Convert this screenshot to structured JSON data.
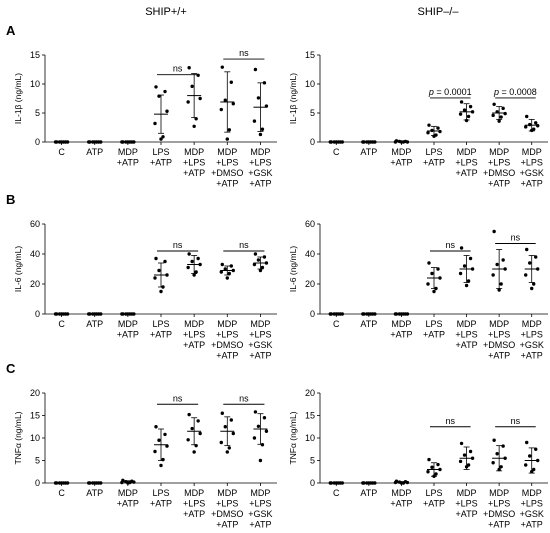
{
  "columns": [
    "SHIP+/+",
    "SHIP–/–"
  ],
  "chart_data": [
    {
      "type": "scatter",
      "panel": "A",
      "column": "SHIP+/+",
      "ylabel": "IL-1β (ng/mL)",
      "ylim": [
        0,
        15
      ],
      "yticks": [
        0,
        5,
        10,
        15
      ],
      "categories": [
        [
          "C"
        ],
        [
          "ATP"
        ],
        [
          "MDP",
          "+ATP"
        ],
        [
          "LPS",
          "+ATP"
        ],
        [
          "MDP",
          "+LPS",
          "+ATP"
        ],
        [
          "MDP",
          "+LPS",
          "+DMSO",
          "+ATP"
        ],
        [
          "MDP",
          "+LPS",
          "+GSK",
          "+ATP"
        ]
      ],
      "means": [
        0,
        0,
        0,
        4.8,
        8.0,
        6.9,
        6.0
      ],
      "sd": [
        0,
        0,
        0,
        3.3,
        3.8,
        5.2,
        4.2
      ],
      "points": [
        [
          0,
          0,
          0,
          0,
          0,
          0,
          0
        ],
        [
          0,
          0,
          0,
          0,
          0,
          0,
          0
        ],
        [
          0,
          0,
          0,
          0,
          0,
          0,
          0
        ],
        [
          9.5,
          8.7,
          7.9,
          5.3,
          3.2,
          0.9,
          0.5
        ],
        [
          12.8,
          11.5,
          9.6,
          7.5,
          6.9,
          4.0,
          2.7
        ],
        [
          12.9,
          10.3,
          7.2,
          6.6,
          5.6,
          2.1,
          0.5
        ],
        [
          12.5,
          10.2,
          7.6,
          6.2,
          3.6,
          2.2,
          1.3
        ]
      ],
      "annotations": [
        {
          "from": 3,
          "to": 4,
          "text": "ns",
          "y": 11.6
        },
        {
          "from": 5,
          "to": 6,
          "text": "ns",
          "y": 14.3
        }
      ]
    },
    {
      "type": "scatter",
      "panel": "A",
      "column": "SHIP–/–",
      "ylabel": "IL-1β (ng/mL)",
      "ylim": [
        0,
        15
      ],
      "yticks": [
        0,
        5,
        10,
        15
      ],
      "categories": [
        [
          "C"
        ],
        [
          "ATP"
        ],
        [
          "MDP",
          "+ATP"
        ],
        [
          "LPS",
          "+ATP"
        ],
        [
          "MDP",
          "+LPS",
          "+ATP"
        ],
        [
          "MDP",
          "+LPS",
          "+DMSO",
          "+ATP"
        ],
        [
          "MDP",
          "+LPS",
          "+GSK",
          "+ATP"
        ]
      ],
      "means": [
        0,
        0,
        0,
        1.9,
        5.2,
        5.0,
        2.9
      ],
      "sd": [
        0,
        0,
        0,
        0.8,
        1.4,
        1.1,
        1.0
      ],
      "points": [
        [
          0,
          0,
          0,
          0,
          0,
          0,
          0
        ],
        [
          0,
          0,
          0,
          0,
          0,
          0,
          0
        ],
        [
          0.2,
          0.1,
          0.1,
          0,
          0,
          0,
          0
        ],
        [
          2.9,
          2.4,
          2.0,
          1.8,
          1.6,
          1.2,
          1.0
        ],
        [
          6.9,
          6.1,
          5.5,
          5.2,
          4.8,
          4.4,
          3.7
        ],
        [
          6.5,
          5.8,
          5.2,
          4.9,
          4.6,
          4.3,
          3.6
        ],
        [
          4.4,
          3.3,
          3.0,
          2.8,
          2.6,
          2.2,
          2.0
        ]
      ],
      "annotations": [
        {
          "from": 3,
          "to": 4,
          "text": "p = 0.0001",
          "y": 7.6
        },
        {
          "from": 5,
          "to": 6,
          "text": "p = 0.0008",
          "y": 7.6
        }
      ]
    },
    {
      "type": "scatter",
      "panel": "B",
      "column": "SHIP+/+",
      "ylabel": "IL-6 (ng/mL)",
      "ylim": [
        0,
        60
      ],
      "yticks": [
        0,
        20,
        40,
        60
      ],
      "categories": [
        [
          "C"
        ],
        [
          "ATP"
        ],
        [
          "MDP",
          "+ATP"
        ],
        [
          "LPS",
          "+ATP"
        ],
        [
          "MDP",
          "+LPS",
          "+ATP"
        ],
        [
          "MDP",
          "+LPS",
          "+DMSO",
          "+ATP"
        ],
        [
          "MDP",
          "+LPS",
          "+GSK",
          "+ATP"
        ]
      ],
      "means": [
        0,
        0,
        0,
        26,
        33,
        29,
        34
      ],
      "sd": [
        0,
        0,
        0,
        8,
        6,
        3,
        4
      ],
      "points": [
        [
          0,
          0,
          0,
          0,
          0,
          0,
          0
        ],
        [
          0,
          0,
          0,
          0,
          0,
          0,
          0
        ],
        [
          0,
          0,
          0,
          0,
          0,
          0,
          0
        ],
        [
          37,
          35,
          29,
          26,
          24,
          18,
          15
        ],
        [
          40,
          37,
          35,
          33,
          31,
          28,
          26
        ],
        [
          33,
          32,
          30,
          29,
          28,
          27,
          24
        ],
        [
          40,
          38,
          36,
          34,
          33,
          31,
          29
        ]
      ],
      "annotations": [
        {
          "from": 3,
          "to": 4,
          "text": "ns",
          "y": 42
        },
        {
          "from": 5,
          "to": 6,
          "text": "ns",
          "y": 42
        }
      ]
    },
    {
      "type": "scatter",
      "panel": "B",
      "column": "SHIP–/–",
      "ylabel": "IL-6 (ng/mL)",
      "ylim": [
        0,
        60
      ],
      "yticks": [
        0,
        20,
        40,
        60
      ],
      "categories": [
        [
          "C"
        ],
        [
          "ATP"
        ],
        [
          "MDP",
          "+ATP"
        ],
        [
          "LPS",
          "+ATP"
        ],
        [
          "MDP",
          "+LPS",
          "+ATP"
        ],
        [
          "MDP",
          "+LPS",
          "+DMSO",
          "+ATP"
        ],
        [
          "MDP",
          "+LPS",
          "+GSK",
          "+ATP"
        ]
      ],
      "means": [
        0,
        0,
        0,
        24,
        30,
        30,
        30
      ],
      "sd": [
        0,
        0,
        0,
        7,
        9,
        13,
        9
      ],
      "points": [
        [
          0,
          0,
          0,
          0,
          0,
          0,
          0
        ],
        [
          0,
          0,
          0,
          0,
          0,
          0,
          0
        ],
        [
          0,
          0,
          0,
          0,
          0,
          0,
          0
        ],
        [
          34,
          30,
          27,
          24,
          20,
          17,
          15
        ],
        [
          44,
          37,
          32,
          30,
          27,
          22,
          19
        ],
        [
          55,
          36,
          33,
          30,
          26,
          20,
          16
        ],
        [
          43,
          38,
          34,
          30,
          26,
          20,
          17
        ]
      ],
      "annotations": [
        {
          "from": 3,
          "to": 4,
          "text": "ns",
          "y": 42
        },
        {
          "from": 5,
          "to": 6,
          "text": "ns",
          "y": 47
        }
      ]
    },
    {
      "type": "scatter",
      "panel": "C",
      "column": "SHIP+/+",
      "ylabel": "TNFα (ng/mL)",
      "ylim": [
        0,
        20
      ],
      "yticks": [
        0,
        5,
        10,
        15,
        20
      ],
      "categories": [
        [
          "C"
        ],
        [
          "ATP"
        ],
        [
          "MDP",
          "+ATP"
        ],
        [
          "LPS",
          "+ATP"
        ],
        [
          "MDP",
          "+LPS",
          "+ATP"
        ],
        [
          "MDP",
          "+LPS",
          "+DMSO",
          "+ATP"
        ],
        [
          "MDP",
          "+LPS",
          "+GSK",
          "+ATP"
        ]
      ],
      "means": [
        0,
        0,
        0.3,
        8.5,
        11.5,
        11.5,
        12.0
      ],
      "sd": [
        0,
        0,
        0.2,
        3.5,
        3.0,
        3.2,
        3.4
      ],
      "points": [
        [
          0,
          0,
          0,
          0,
          0,
          0,
          0
        ],
        [
          0,
          0,
          0,
          0,
          0,
          0,
          0
        ],
        [
          0.6,
          0.4,
          0.3,
          0.2,
          0.1,
          0.1,
          0
        ],
        [
          12.5,
          10.8,
          9.5,
          8.2,
          7.0,
          5.2,
          3.9
        ],
        [
          15.2,
          13.8,
          12.1,
          11.0,
          9.6,
          8.3,
          6.9
        ],
        [
          15.5,
          14.0,
          12.5,
          11.0,
          9.0,
          7.8,
          6.9
        ],
        [
          15.8,
          14.5,
          12.6,
          11.5,
          10.0,
          8.5,
          5.0
        ]
      ],
      "annotations": [
        {
          "from": 3,
          "to": 4,
          "text": "ns",
          "y": 17.5
        },
        {
          "from": 5,
          "to": 6,
          "text": "ns",
          "y": 17.5
        }
      ]
    },
    {
      "type": "scatter",
      "panel": "C",
      "column": "SHIP–/–",
      "ylabel": "TNFα (ng/mL)",
      "ylim": [
        0,
        20
      ],
      "yticks": [
        0,
        5,
        10,
        15,
        20
      ],
      "categories": [
        [
          "C"
        ],
        [
          "ATP"
        ],
        [
          "MDP",
          "+ATP"
        ],
        [
          "LPS",
          "+ATP"
        ],
        [
          "MDP",
          "+LPS",
          "+ATP"
        ],
        [
          "MDP",
          "+LPS",
          "+DMSO",
          "+ATP"
        ],
        [
          "MDP",
          "+LPS",
          "+GSK",
          "+ATP"
        ]
      ],
      "means": [
        0,
        0,
        0.2,
        3.0,
        5.5,
        5.5,
        5.0
      ],
      "sd": [
        0,
        0,
        0.1,
        1.5,
        2.5,
        2.8,
        2.8
      ],
      "points": [
        [
          0,
          0,
          0,
          0,
          0,
          0,
          0
        ],
        [
          0,
          0,
          0,
          0,
          0,
          0,
          0
        ],
        [
          0.4,
          0.3,
          0.2,
          0.1,
          0.1,
          0,
          0
        ],
        [
          5.2,
          4.1,
          3.5,
          3.0,
          2.5,
          2.0,
          1.5
        ],
        [
          8.8,
          7.0,
          6.2,
          5.5,
          4.8,
          4.0,
          3.6
        ],
        [
          9.5,
          8.2,
          6.5,
          5.5,
          4.5,
          3.6,
          3.0
        ],
        [
          9.0,
          7.5,
          6.0,
          5.0,
          4.0,
          3.0,
          2.5
        ]
      ],
      "annotations": [
        {
          "from": 3,
          "to": 4,
          "text": "ns",
          "y": 12.5
        },
        {
          "from": 5,
          "to": 6,
          "text": "ns",
          "y": 12.5
        }
      ]
    }
  ]
}
